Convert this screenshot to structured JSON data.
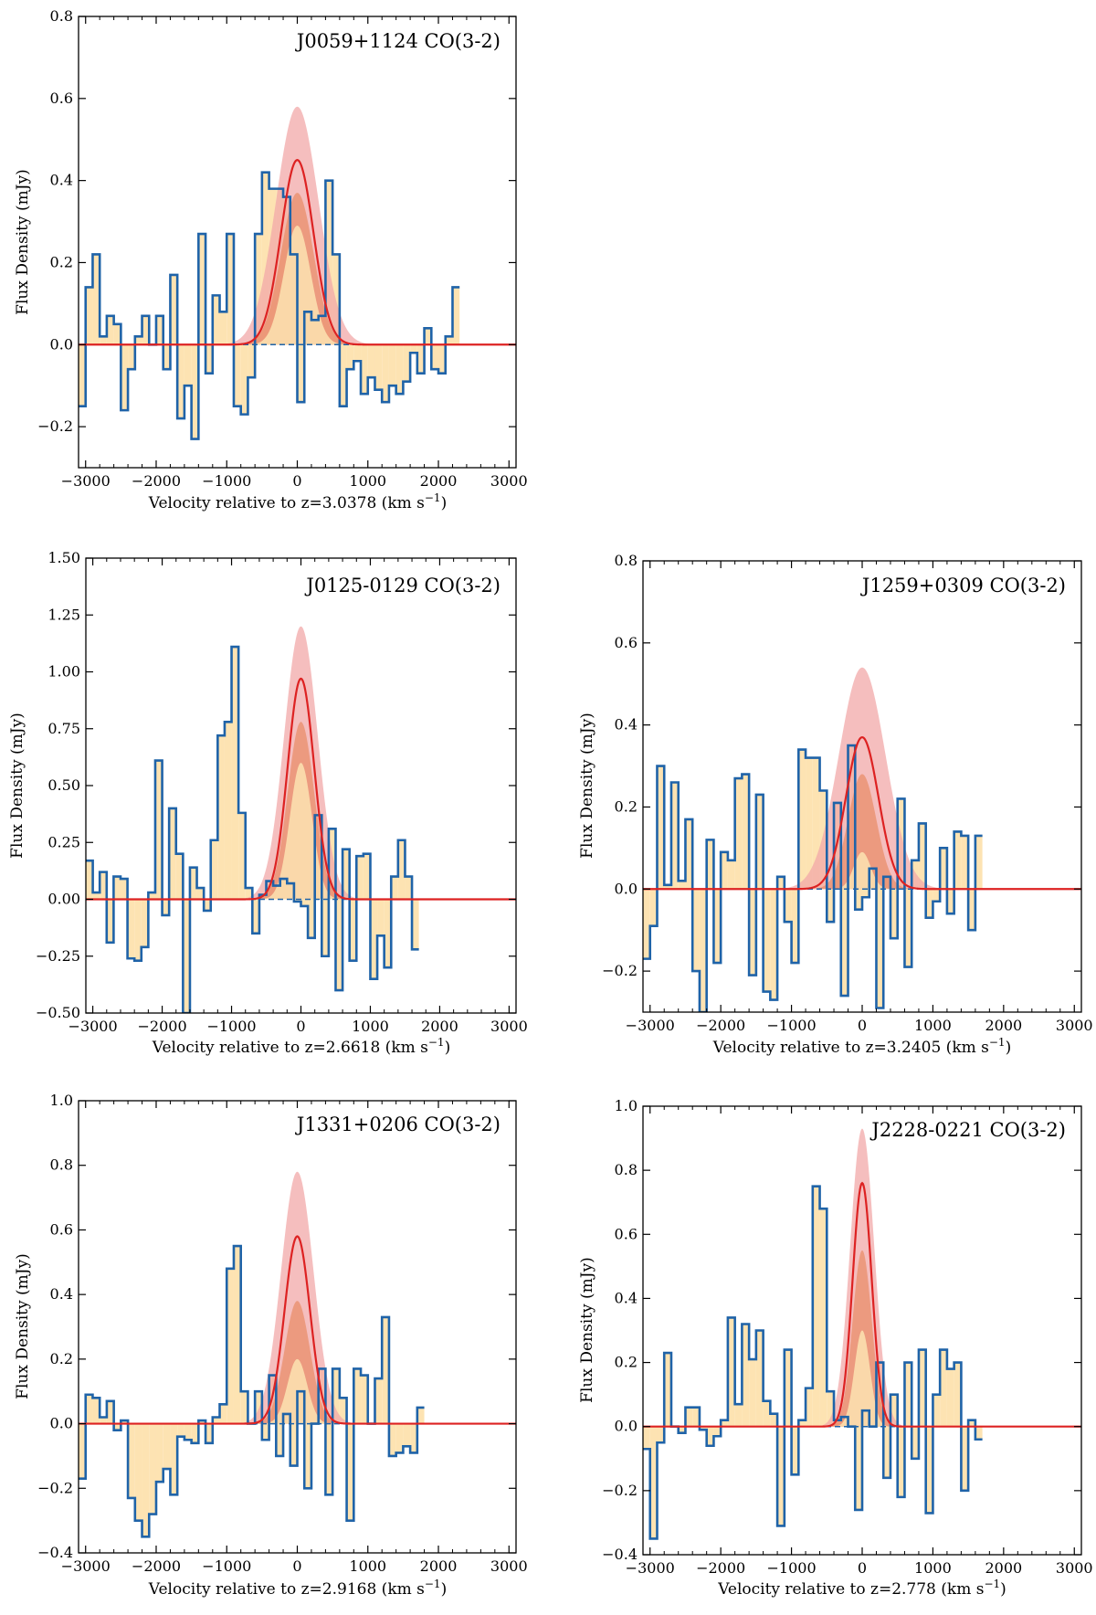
{
  "colors": {
    "step": "#1f63a8",
    "fill": "#fde3b2",
    "model": "#dd2222",
    "band_outer": "#f1a8a8",
    "band_inner": "#e88a64",
    "zero": "#1f63a8"
  },
  "chart_data": [
    {
      "type": "line",
      "title": "J0059+1124 CO(3-2)",
      "xlabel": "Velocity relative to z=3.0378 (km s",
      "xlabel_sup": "−1",
      "xlabel_close": ")",
      "ylabel": "Flux Density (mJy)",
      "xlim": [
        -3100,
        3100
      ],
      "ylim": [
        -0.3,
        0.8
      ],
      "xticks": [
        -3000,
        -2000,
        -1000,
        0,
        1000,
        2000,
        3000
      ],
      "xtick_labels": [
        "−3000",
        "−2000",
        "−1000",
        "0",
        "1000",
        "2000",
        "3000"
      ],
      "yticks": [
        -0.2,
        0.0,
        0.2,
        0.4,
        0.6,
        0.8
      ],
      "ytick_labels": [
        "−0.2",
        "0.0",
        "0.2",
        "0.4",
        "0.6",
        "0.8"
      ],
      "bin_width": 100,
      "bin_start": -3100,
      "values": [
        -0.15,
        0.14,
        0.22,
        0.02,
        0.07,
        0.05,
        -0.16,
        -0.06,
        0.02,
        0.07,
        0.0,
        0.07,
        -0.06,
        0.17,
        -0.18,
        -0.1,
        -0.23,
        0.27,
        -0.07,
        0.12,
        0.08,
        0.27,
        -0.15,
        -0.17,
        -0.08,
        0.27,
        0.42,
        0.38,
        0.38,
        0.36,
        0.22,
        -0.14,
        0.08,
        0.06,
        0.07,
        0.4,
        0.22,
        -0.15,
        -0.06,
        -0.04,
        -0.12,
        -0.08,
        -0.11,
        -0.14,
        -0.1,
        -0.12,
        -0.09,
        -0.02,
        -0.07,
        0.04,
        -0.06,
        -0.07,
        0.02,
        0.14
      ],
      "model": {
        "amp": 0.45,
        "center": 0,
        "sigma": 230
      },
      "band_outer": {
        "amp": 0.58,
        "center": 0,
        "sigma": 300
      },
      "band_inner": {
        "amp": 0.37,
        "center": 0,
        "sigma": 230
      },
      "band_low": {
        "amp": 0.29,
        "center": 0,
        "sigma": 190
      }
    },
    {
      "type": "line",
      "title": "J0125-0129 CO(3-2)",
      "xlabel": "Velocity relative to z=2.6618 (km s",
      "xlabel_sup": "−1",
      "xlabel_close": ")",
      "ylabel": "Flux Density (mJy)",
      "xlim": [
        -3100,
        3100
      ],
      "ylim": [
        -0.5,
        1.5
      ],
      "xticks": [
        -3000,
        -2000,
        -1000,
        0,
        1000,
        2000,
        3000
      ],
      "xtick_labels": [
        "−3000",
        "−2000",
        "−1000",
        "0",
        "1000",
        "2000",
        "3000"
      ],
      "yticks": [
        -0.5,
        -0.25,
        0.0,
        0.25,
        0.5,
        0.75,
        1.0,
        1.25,
        1.5
      ],
      "ytick_labels": [
        "−0.50",
        "−0.25",
        "0.00",
        "0.25",
        "0.50",
        "0.75",
        "1.00",
        "1.25",
        "1.50"
      ],
      "bin_width": 100,
      "bin_start": -3100,
      "values": [
        0.17,
        0.03,
        0.12,
        -0.19,
        0.1,
        0.09,
        -0.26,
        -0.27,
        -0.21,
        0.03,
        0.61,
        -0.07,
        0.4,
        0.2,
        -0.5,
        0.14,
        0.05,
        -0.05,
        0.26,
        0.72,
        0.78,
        1.11,
        0.38,
        0.05,
        -0.15,
        0.02,
        0.08,
        0.06,
        0.09,
        0.07,
        -0.01,
        -0.03,
        -0.17,
        0.37,
        -0.25,
        0.31,
        -0.4,
        0.22,
        -0.27,
        0.19,
        0.2,
        -0.35,
        -0.16,
        -0.3,
        0.1,
        0.26,
        0.1,
        -0.22
      ],
      "model": {
        "amp": 0.97,
        "center": 0,
        "sigma": 190
      },
      "band_outer": {
        "amp": 1.2,
        "center": 0,
        "sigma": 240
      },
      "band_inner": {
        "amp": 0.78,
        "center": 0,
        "sigma": 190
      },
      "band_low": {
        "amp": 0.6,
        "center": 0,
        "sigma": 160
      }
    },
    {
      "type": "line",
      "title": "J1259+0309 CO(3-2)",
      "xlabel": "Velocity relative to z=3.2405 (km s",
      "xlabel_sup": "−1",
      "xlabel_close": ")",
      "ylabel": "Flux Density (mJy)",
      "xlim": [
        -3100,
        3100
      ],
      "ylim": [
        -0.3,
        0.8
      ],
      "xticks": [
        -3000,
        -2000,
        -1000,
        0,
        1000,
        2000,
        3000
      ],
      "xtick_labels": [
        "−3000",
        "−2000",
        "−1000",
        "0",
        "1000",
        "2000",
        "3000"
      ],
      "yticks": [
        -0.2,
        0.0,
        0.2,
        0.4,
        0.6,
        0.8
      ],
      "ytick_labels": [
        "−0.2",
        "0.0",
        "0.2",
        "0.4",
        "0.6",
        "0.8"
      ],
      "bin_width": 100,
      "bin_start": -3100,
      "values": [
        -0.17,
        -0.09,
        0.3,
        0.01,
        0.26,
        0.02,
        0.17,
        -0.2,
        -0.3,
        0.12,
        -0.18,
        0.09,
        0.07,
        0.27,
        0.28,
        -0.21,
        0.23,
        -0.25,
        -0.27,
        0.03,
        -0.08,
        -0.18,
        0.34,
        0.32,
        0.32,
        0.24,
        -0.08,
        0.21,
        -0.26,
        0.35,
        -0.05,
        -0.02,
        0.05,
        -0.29,
        0.03,
        -0.12,
        0.22,
        -0.19,
        0.07,
        0.16,
        -0.07,
        -0.03,
        0.1,
        -0.06,
        0.14,
        0.13,
        -0.1,
        0.13
      ],
      "model": {
        "amp": 0.37,
        "center": 0,
        "sigma": 230
      },
      "band_outer": {
        "amp": 0.54,
        "center": 0,
        "sigma": 330
      },
      "band_inner": {
        "amp": 0.28,
        "center": 0,
        "sigma": 200
      },
      "band_low": {
        "amp": 0.09,
        "center": 0,
        "sigma": 120
      }
    },
    {
      "type": "line",
      "title": "J1331+0206 CO(3-2)",
      "xlabel": "Velocity relative to z=2.9168 (km s",
      "xlabel_sup": "−1",
      "xlabel_close": ")",
      "ylabel": "Flux Density (mJy)",
      "xlim": [
        -3100,
        3100
      ],
      "ylim": [
        -0.4,
        1.0
      ],
      "xticks": [
        -3000,
        -2000,
        -1000,
        0,
        1000,
        2000,
        3000
      ],
      "xtick_labels": [
        "−3000",
        "−2000",
        "−1000",
        "0",
        "1000",
        "2000",
        "3000"
      ],
      "yticks": [
        -0.4,
        -0.2,
        0.0,
        0.2,
        0.4,
        0.6,
        0.8,
        1.0
      ],
      "ytick_labels": [
        "−0.4",
        "−0.2",
        "0.0",
        "0.2",
        "0.4",
        "0.6",
        "0.8",
        "1.0"
      ],
      "bin_width": 100,
      "bin_start": -3100,
      "values": [
        -0.17,
        0.09,
        0.08,
        0.02,
        0.07,
        -0.02,
        0.01,
        -0.23,
        -0.3,
        -0.35,
        -0.28,
        -0.18,
        -0.14,
        -0.22,
        -0.04,
        -0.05,
        -0.06,
        0.01,
        -0.06,
        0.02,
        0.06,
        0.48,
        0.55,
        0.1,
        0.0,
        0.1,
        -0.05,
        0.15,
        -0.1,
        0.03,
        -0.13,
        0.1,
        -0.2,
        0.0,
        0.17,
        -0.22,
        0.17,
        0.08,
        -0.3,
        0.17,
        0.15,
        0.0,
        0.14,
        0.33,
        -0.1,
        -0.09,
        -0.07,
        -0.09,
        0.05
      ],
      "model": {
        "amp": 0.58,
        "center": 0,
        "sigma": 180
      },
      "band_outer": {
        "amp": 0.78,
        "center": 0,
        "sigma": 230
      },
      "band_inner": {
        "amp": 0.38,
        "center": 0,
        "sigma": 180
      },
      "band_low": {
        "amp": 0.2,
        "center": 0,
        "sigma": 140
      }
    },
    {
      "type": "line",
      "title": "J2228-0221 CO(3-2)",
      "xlabel": "Velocity relative to z=2.778 (km s",
      "xlabel_sup": "−1",
      "xlabel_close": ")",
      "ylabel": "Flux Density (mJy)",
      "xlim": [
        -3100,
        3100
      ],
      "ylim": [
        -0.4,
        1.0
      ],
      "xticks": [
        -3000,
        -2000,
        -1000,
        0,
        1000,
        2000,
        3000
      ],
      "xtick_labels": [
        "−3000",
        "−2000",
        "−1000",
        "0",
        "1000",
        "2000",
        "3000"
      ],
      "yticks": [
        -0.4,
        -0.2,
        0.0,
        0.2,
        0.4,
        0.6,
        0.8,
        1.0
      ],
      "ytick_labels": [
        "−0.4",
        "−0.2",
        "0.0",
        "0.2",
        "0.4",
        "0.6",
        "0.8",
        "1.0"
      ],
      "bin_width": 100,
      "bin_start": -3100,
      "values": [
        -0.07,
        -0.35,
        -0.05,
        0.23,
        0.0,
        -0.02,
        0.06,
        0.06,
        -0.01,
        -0.06,
        -0.03,
        0.02,
        0.34,
        0.07,
        0.32,
        0.21,
        0.3,
        0.08,
        0.04,
        -0.31,
        0.24,
        -0.15,
        0.02,
        0.12,
        0.75,
        0.68,
        0.11,
        0.02,
        0.03,
        0.0,
        -0.26,
        0.05,
        0.0,
        0.2,
        -0.16,
        0.1,
        -0.22,
        0.2,
        -0.1,
        0.24,
        -0.27,
        0.1,
        0.24,
        0.18,
        0.2,
        -0.2,
        0.02,
        -0.04
      ],
      "model": {
        "amp": 0.76,
        "center": 0,
        "sigma": 135
      },
      "band_outer": {
        "amp": 0.93,
        "center": 0,
        "sigma": 170
      },
      "band_inner": {
        "amp": 0.55,
        "center": 0,
        "sigma": 135
      },
      "band_low": {
        "amp": 0.3,
        "center": 0,
        "sigma": 110
      }
    }
  ]
}
